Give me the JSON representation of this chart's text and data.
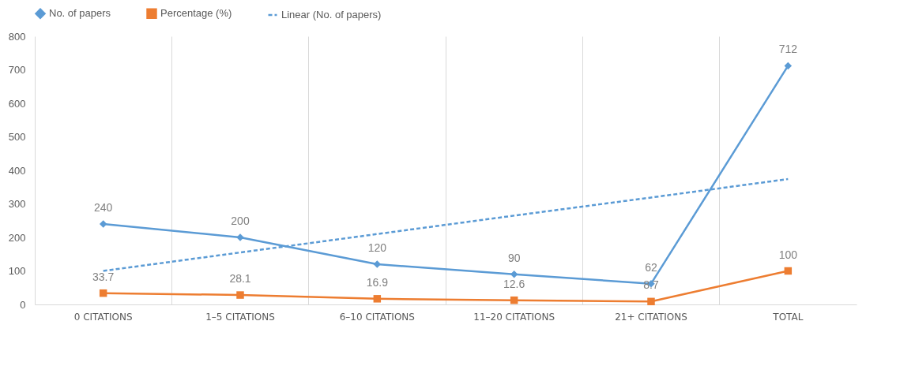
{
  "chart_data": {
    "type": "line",
    "categories": [
      "0 CITATIONS",
      "1–5 CITATIONS",
      "6–10 CITATIONS",
      "11–20 CITATIONS",
      "21+ CITATIONS",
      "TOTAL"
    ],
    "series": [
      {
        "name": "No. of papers",
        "color": "#5b9bd5",
        "marker": "diamond",
        "line_style": "solid",
        "values": [
          240,
          200,
          120,
          90,
          62,
          712
        ],
        "value_labels": [
          "240",
          "200",
          "120",
          "90",
          "62",
          "712"
        ]
      },
      {
        "name": "Percentage (%)",
        "color": "#ed7d31",
        "marker": "square",
        "line_style": "solid",
        "values": [
          33.7,
          28.1,
          16.9,
          12.6,
          8.7,
          100
        ],
        "value_labels": [
          "33.7",
          "28.1",
          "16.9",
          "12.6",
          "8.7",
          "100"
        ]
      },
      {
        "name": "Linear (No. of papers)",
        "type": "line",
        "color": "#5b9bd5",
        "marker": "none",
        "line_style": "dashed",
        "x": [
          "0 CITATIONS",
          "1–5 CITATIONS",
          "6–10 CITATIONS",
          "11–20 CITATIONS",
          "21+ CITATIONS",
          "TOTAL"
        ],
        "values": [
          100,
          155,
          210,
          265,
          319,
          374
        ]
      }
    ],
    "ylim": [
      0,
      800
    ],
    "yticks": [
      0,
      100,
      200,
      300,
      400,
      500,
      600,
      700,
      800
    ],
    "grid": "x",
    "legend": "top"
  }
}
